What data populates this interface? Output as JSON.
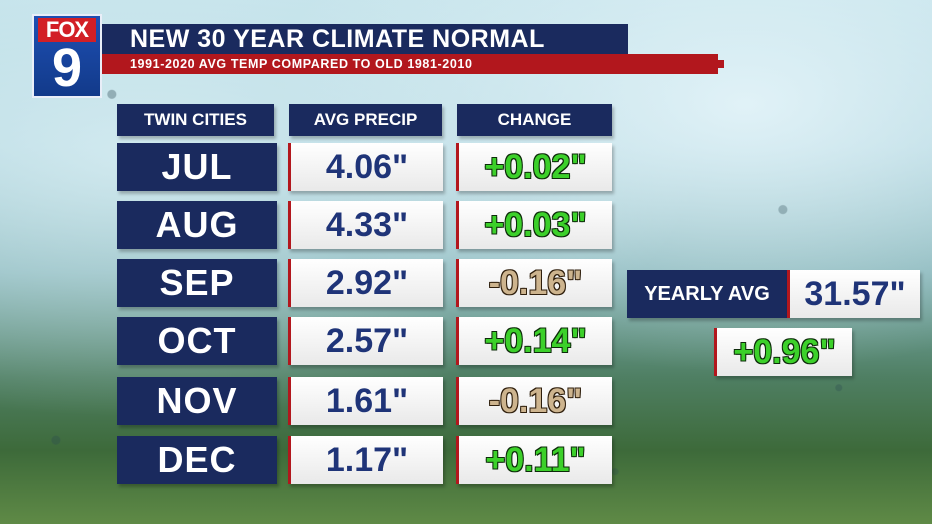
{
  "brand": {
    "logo_top": "FOX",
    "logo_bottom": "9"
  },
  "title": "NEW 30 YEAR CLIMATE NORMAL",
  "subtitle": "1991-2020 AVG TEMP COMPARED TO OLD 1981-2010",
  "table": {
    "headers": [
      "TWIN CITIES",
      "AVG PRECIP",
      "CHANGE"
    ],
    "rows": [
      {
        "month": "JUL",
        "precip": "4.06\"",
        "change": "+0.02\"",
        "direction": "up"
      },
      {
        "month": "AUG",
        "precip": "4.33\"",
        "change": "+0.03\"",
        "direction": "up"
      },
      {
        "month": "SEP",
        "precip": "2.92\"",
        "change": "-0.16\"",
        "direction": "down"
      },
      {
        "month": "OCT",
        "precip": "2.57\"",
        "change": "+0.14\"",
        "direction": "up"
      },
      {
        "month": "NOV",
        "precip": "1.61\"",
        "change": "-0.16\"",
        "direction": "down"
      },
      {
        "month": "DEC",
        "precip": "1.17\"",
        "change": "+0.11\"",
        "direction": "up"
      }
    ]
  },
  "yearly": {
    "label": "YEARLY AVG",
    "value": "31.57\"",
    "change": "+0.96\"",
    "direction": "up"
  },
  "colors": {
    "navy": "#1a2a5e",
    "red": "#b2171d",
    "positive": "#3cd02a",
    "negative": "#cdb48e",
    "value_text": "#1f3478"
  }
}
